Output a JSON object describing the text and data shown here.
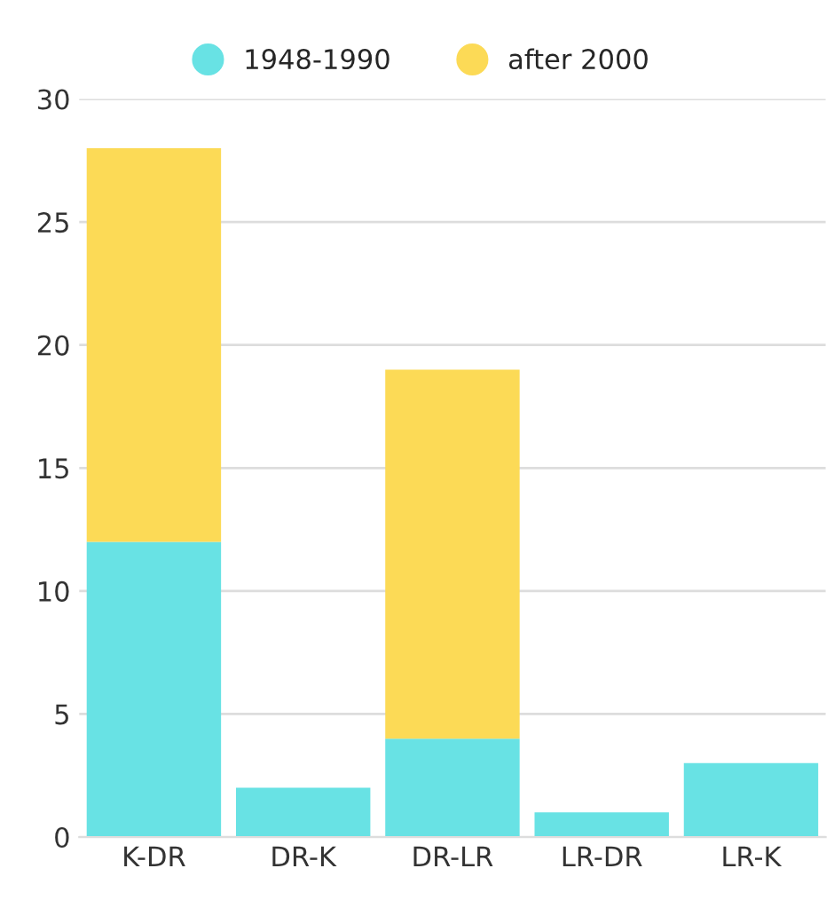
{
  "chart_data": {
    "type": "bar",
    "stacked": true,
    "categories": [
      "K-DR",
      "DR-K",
      "DR-LR",
      "LR-DR",
      "LR-K"
    ],
    "series": [
      {
        "name": "1948-1990",
        "color": "#68e2e4",
        "values": [
          12,
          2,
          4,
          1,
          3
        ]
      },
      {
        "name": "after 2000",
        "color": "#fcda56",
        "values": [
          16,
          0,
          15,
          0,
          0
        ]
      }
    ],
    "ylim": [
      0,
      30
    ],
    "yticks": [
      0,
      5,
      10,
      15,
      20,
      25,
      30
    ],
    "grid": "y",
    "legend": "top"
  }
}
